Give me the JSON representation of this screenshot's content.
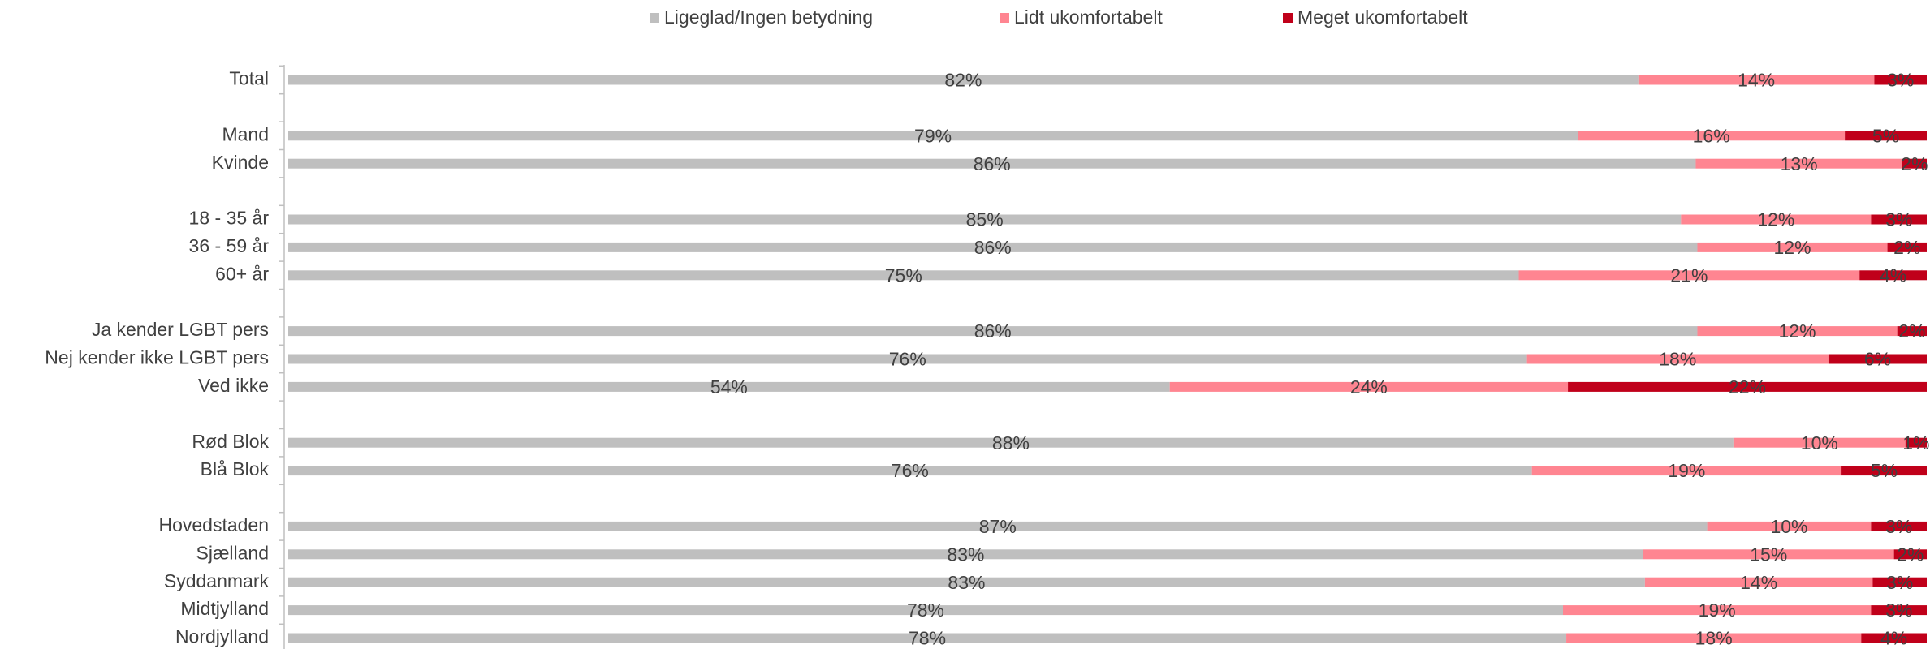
{
  "chart_data": {
    "type": "stacked_barh",
    "categories": [
      "Total",
      null,
      "Mand",
      "Kvinde",
      null,
      "18 - 35 år",
      "36 - 59 år",
      "60+ år",
      null,
      "Ja kender LGBT pers",
      "Nej kender ikke LGBT pers",
      "Ved ikke",
      null,
      "Rød Blok",
      "Blå Blok",
      null,
      "Hovedstaden",
      "Sjælland",
      "Syddanmark",
      "Midtjylland",
      "Nordjylland"
    ],
    "xlim": [
      0,
      100
    ],
    "legend": "top",
    "series": [
      {
        "name": "Ligeglad/Ingen betydning",
        "color": "#bfbfbf",
        "values": [
          82.4,
          null,
          78.7,
          85.9,
          null,
          85.0,
          86.0,
          75.1,
          null,
          86.0,
          75.6,
          53.8,
          null,
          88.2,
          75.9,
          null,
          86.6,
          82.7,
          82.8,
          77.8,
          78.0
        ],
        "value_labels": [
          "82%",
          null,
          "79%",
          "86%",
          null,
          "85%",
          "86%",
          "75%",
          null,
          "86%",
          "76%",
          "54%",
          null,
          "88%",
          "76%",
          null,
          "87%",
          "83%",
          "83%",
          "78%",
          "78%"
        ]
      },
      {
        "name": "Lidt ukomfortabelt",
        "color": "#ff8591",
        "values": [
          14.4,
          null,
          16.3,
          12.6,
          null,
          11.6,
          11.6,
          20.8,
          null,
          12.2,
          18.4,
          24.3,
          null,
          10.5,
          18.9,
          null,
          10.0,
          15.3,
          13.9,
          18.8,
          18.0
        ],
        "value_labels": [
          "14%",
          null,
          "16%",
          "13%",
          null,
          "12%",
          "12%",
          "21%",
          null,
          "12%",
          "18%",
          "24%",
          null,
          "10%",
          "19%",
          null,
          "10%",
          "15%",
          "14%",
          "19%",
          "18%"
        ]
      },
      {
        "name": "Meget ukomfortabelt",
        "color": "#c0001a",
        "values": [
          3.2,
          null,
          5.0,
          1.5,
          null,
          3.4,
          2.4,
          4.1,
          null,
          1.8,
          6.0,
          21.9,
          null,
          1.3,
          5.2,
          null,
          3.4,
          2.0,
          3.3,
          3.4,
          4.0
        ],
        "value_labels": [
          "3%",
          null,
          "5%",
          "2%",
          null,
          "3%",
          "2%",
          "4%",
          null,
          "2%",
          "6%",
          "22%",
          null,
          "1%",
          "5%",
          null,
          "3%",
          "2%",
          "3%",
          "3%",
          "4%"
        ]
      }
    ]
  }
}
